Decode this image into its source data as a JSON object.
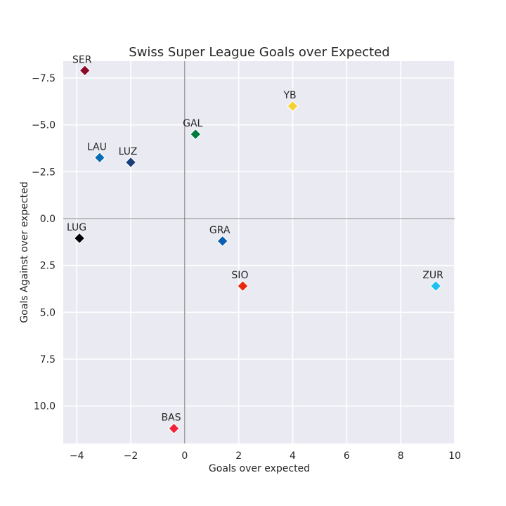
{
  "chart_data": {
    "type": "scatter",
    "title": "Swiss Super League Goals over Expected",
    "xlabel": "Goals over expected",
    "ylabel": "Goals Against over expected",
    "xlim": [
      -4.5,
      10
    ],
    "ylim": [
      12.0,
      -8.4
    ],
    "y_inverted": true,
    "grid": true,
    "background": "#eaeaf2",
    "grid_color": "#ffffff",
    "reference_lines": {
      "x": 0,
      "y": 0,
      "color": "#555555"
    },
    "x_ticks": [
      {
        "value": -4,
        "label": "−4"
      },
      {
        "value": -2,
        "label": "−2"
      },
      {
        "value": 0,
        "label": "0"
      },
      {
        "value": 2,
        "label": "2"
      },
      {
        "value": 4,
        "label": "4"
      },
      {
        "value": 6,
        "label": "6"
      },
      {
        "value": 8,
        "label": "8"
      },
      {
        "value": 10,
        "label": "10"
      }
    ],
    "y_ticks": [
      {
        "value": -7.5,
        "label": "−7.5"
      },
      {
        "value": -5.0,
        "label": "−5.0"
      },
      {
        "value": -2.5,
        "label": "−2.5"
      },
      {
        "value": 0.0,
        "label": "0.0"
      },
      {
        "value": 2.5,
        "label": "2.5"
      },
      {
        "value": 5.0,
        "label": "5.0"
      },
      {
        "value": 7.5,
        "label": "7.5"
      },
      {
        "value": 10.0,
        "label": "10.0"
      }
    ],
    "points": [
      {
        "label": "SER",
        "x": -3.7,
        "y": -7.9,
        "color": "#8b0a2a"
      },
      {
        "label": "YB",
        "x": 4.0,
        "y": -6.0,
        "color": "#f5d130"
      },
      {
        "label": "GAL",
        "x": 0.4,
        "y": -4.5,
        "color": "#00793f"
      },
      {
        "label": "LAU",
        "x": -3.15,
        "y": -3.25,
        "color": "#0a6cb5"
      },
      {
        "label": "LUZ",
        "x": -2.0,
        "y": -3.0,
        "color": "#1b3f7a"
      },
      {
        "label": "LUG",
        "x": -3.9,
        "y": 1.05,
        "color": "#000000"
      },
      {
        "label": "GRA",
        "x": 1.4,
        "y": 1.2,
        "color": "#0a5fb0"
      },
      {
        "label": "SIO",
        "x": 2.15,
        "y": 3.6,
        "color": "#e8290f"
      },
      {
        "label": "ZUR",
        "x": 9.3,
        "y": 3.6,
        "color": "#1ec0ef"
      },
      {
        "label": "BAS",
        "x": -0.4,
        "y": 11.2,
        "color": "#f0213a"
      }
    ]
  }
}
